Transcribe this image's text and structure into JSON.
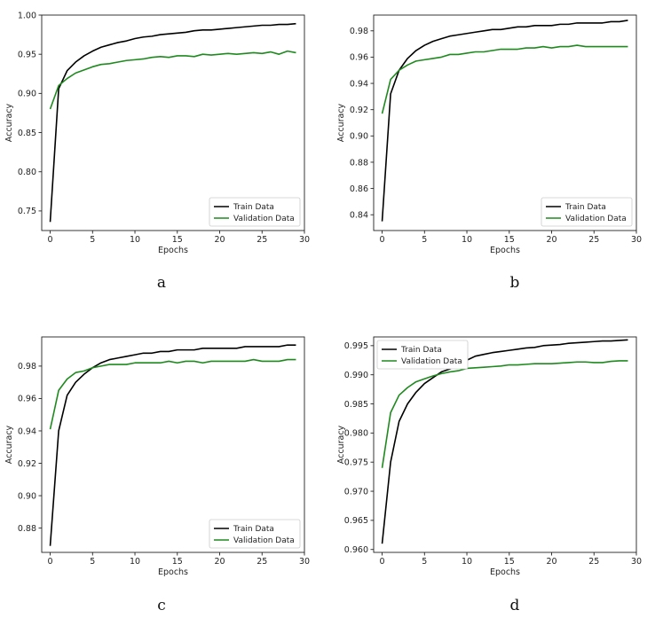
{
  "colors": {
    "train": "#000000",
    "validation": "#1e8a1e"
  },
  "chart_data": [
    {
      "type": "line",
      "panel_label": "a",
      "xlabel": "Epochs",
      "ylabel": "Accuracy",
      "xlim": [
        -1,
        30
      ],
      "ylim": [
        0.725,
        1.0
      ],
      "xticks": [
        0,
        5,
        10,
        15,
        20,
        25,
        30
      ],
      "yticks": [
        0.75,
        0.8,
        0.85,
        0.9,
        0.95,
        1.0
      ],
      "ytick_labels": [
        "0.75",
        "0.80",
        "0.85",
        "0.90",
        "0.95",
        "1.00"
      ],
      "legend_position": "lower-right",
      "x": [
        0,
        1,
        2,
        3,
        4,
        5,
        6,
        7,
        8,
        9,
        10,
        11,
        12,
        13,
        14,
        15,
        16,
        17,
        18,
        19,
        20,
        21,
        22,
        23,
        24,
        25,
        26,
        27,
        28,
        29
      ],
      "series": [
        {
          "name": "Train Data",
          "color": "train",
          "values": [
            0.736,
            0.906,
            0.929,
            0.94,
            0.948,
            0.954,
            0.959,
            0.962,
            0.965,
            0.967,
            0.97,
            0.972,
            0.973,
            0.975,
            0.976,
            0.977,
            0.978,
            0.98,
            0.981,
            0.981,
            0.982,
            0.983,
            0.984,
            0.985,
            0.986,
            0.987,
            0.987,
            0.988,
            0.988,
            0.989
          ]
        },
        {
          "name": "Validation Data",
          "color": "validation",
          "values": [
            0.88,
            0.91,
            0.919,
            0.926,
            0.93,
            0.934,
            0.937,
            0.938,
            0.94,
            0.942,
            0.943,
            0.944,
            0.946,
            0.947,
            0.946,
            0.948,
            0.948,
            0.947,
            0.95,
            0.949,
            0.95,
            0.951,
            0.95,
            0.951,
            0.952,
            0.951,
            0.953,
            0.95,
            0.954,
            0.952
          ]
        }
      ]
    },
    {
      "type": "line",
      "panel_label": "b",
      "xlabel": "Epochs",
      "ylabel": "Accuracy",
      "xlim": [
        -1,
        30
      ],
      "ylim": [
        0.828,
        0.992
      ],
      "xticks": [
        0,
        5,
        10,
        15,
        20,
        25,
        30
      ],
      "yticks": [
        0.84,
        0.86,
        0.88,
        0.9,
        0.92,
        0.94,
        0.96,
        0.98
      ],
      "ytick_labels": [
        "0.84",
        "0.86",
        "0.88",
        "0.90",
        "0.92",
        "0.94",
        "0.96",
        "0.98"
      ],
      "legend_position": "lower-right",
      "x": [
        0,
        1,
        2,
        3,
        4,
        5,
        6,
        7,
        8,
        9,
        10,
        11,
        12,
        13,
        14,
        15,
        16,
        17,
        18,
        19,
        20,
        21,
        22,
        23,
        24,
        25,
        26,
        27,
        28,
        29
      ],
      "series": [
        {
          "name": "Train Data",
          "color": "train",
          "values": [
            0.835,
            0.932,
            0.95,
            0.959,
            0.965,
            0.969,
            0.972,
            0.974,
            0.976,
            0.977,
            0.978,
            0.979,
            0.98,
            0.981,
            0.981,
            0.982,
            0.983,
            0.983,
            0.984,
            0.984,
            0.984,
            0.985,
            0.985,
            0.986,
            0.986,
            0.986,
            0.986,
            0.987,
            0.987,
            0.988
          ]
        },
        {
          "name": "Validation Data",
          "color": "validation",
          "values": [
            0.917,
            0.943,
            0.95,
            0.954,
            0.957,
            0.958,
            0.959,
            0.96,
            0.962,
            0.962,
            0.963,
            0.964,
            0.964,
            0.965,
            0.966,
            0.966,
            0.966,
            0.967,
            0.967,
            0.968,
            0.967,
            0.968,
            0.968,
            0.969,
            0.968,
            0.968,
            0.968,
            0.968,
            0.968,
            0.968
          ]
        }
      ]
    },
    {
      "type": "line",
      "panel_label": "c",
      "xlabel": "Epochs",
      "ylabel": "Accuracy",
      "xlim": [
        -1,
        30
      ],
      "ylim": [
        0.865,
        0.998
      ],
      "xticks": [
        0,
        5,
        10,
        15,
        20,
        25,
        30
      ],
      "yticks": [
        0.88,
        0.9,
        0.92,
        0.94,
        0.96,
        0.98
      ],
      "ytick_labels": [
        "0.88",
        "0.90",
        "0.92",
        "0.94",
        "0.96",
        "0.98"
      ],
      "legend_position": "lower-right",
      "x": [
        0,
        1,
        2,
        3,
        4,
        5,
        6,
        7,
        8,
        9,
        10,
        11,
        12,
        13,
        14,
        15,
        16,
        17,
        18,
        19,
        20,
        21,
        22,
        23,
        24,
        25,
        26,
        27,
        28,
        29
      ],
      "series": [
        {
          "name": "Train Data",
          "color": "train",
          "values": [
            0.869,
            0.94,
            0.962,
            0.97,
            0.975,
            0.979,
            0.982,
            0.984,
            0.985,
            0.986,
            0.987,
            0.988,
            0.988,
            0.989,
            0.989,
            0.99,
            0.99,
            0.99,
            0.991,
            0.991,
            0.991,
            0.991,
            0.991,
            0.992,
            0.992,
            0.992,
            0.992,
            0.992,
            0.993,
            0.993
          ]
        },
        {
          "name": "Validation Data",
          "color": "validation",
          "values": [
            0.941,
            0.965,
            0.972,
            0.976,
            0.977,
            0.979,
            0.98,
            0.981,
            0.981,
            0.981,
            0.982,
            0.982,
            0.982,
            0.982,
            0.983,
            0.982,
            0.983,
            0.983,
            0.982,
            0.983,
            0.983,
            0.983,
            0.983,
            0.983,
            0.984,
            0.983,
            0.983,
            0.983,
            0.984,
            0.984
          ]
        }
      ]
    },
    {
      "type": "line",
      "panel_label": "d",
      "xlabel": "Epochs",
      "ylabel": "Accuracy",
      "xlim": [
        -1,
        30
      ],
      "ylim": [
        0.9595,
        0.9965
      ],
      "xticks": [
        0,
        5,
        10,
        15,
        20,
        25,
        30
      ],
      "yticks": [
        0.96,
        0.965,
        0.97,
        0.975,
        0.98,
        0.985,
        0.99,
        0.995
      ],
      "ytick_labels": [
        "0.960",
        "0.965",
        "0.970",
        "0.975",
        "0.980",
        "0.985",
        "0.990",
        "0.995"
      ],
      "legend_position": "top-left",
      "x": [
        0,
        1,
        2,
        3,
        4,
        5,
        6,
        7,
        8,
        9,
        10,
        11,
        12,
        13,
        14,
        15,
        16,
        17,
        18,
        19,
        20,
        21,
        22,
        23,
        24,
        25,
        26,
        27,
        28,
        29
      ],
      "series": [
        {
          "name": "Train Data",
          "color": "train",
          "values": [
            0.961,
            0.975,
            0.982,
            0.985,
            0.987,
            0.9885,
            0.9895,
            0.9905,
            0.991,
            0.9918,
            0.9925,
            0.9932,
            0.9935,
            0.9938,
            0.994,
            0.9942,
            0.9944,
            0.9946,
            0.9947,
            0.995,
            0.9951,
            0.9952,
            0.9954,
            0.9955,
            0.9956,
            0.9957,
            0.9958,
            0.9958,
            0.9959,
            0.996
          ]
        },
        {
          "name": "Validation Data",
          "color": "validation",
          "values": [
            0.974,
            0.9835,
            0.9865,
            0.9878,
            0.9888,
            0.9893,
            0.9898,
            0.9902,
            0.9905,
            0.9907,
            0.9911,
            0.9912,
            0.9913,
            0.9914,
            0.9915,
            0.9917,
            0.9917,
            0.9918,
            0.9919,
            0.9919,
            0.9919,
            0.992,
            0.9921,
            0.9922,
            0.9922,
            0.9921,
            0.9921,
            0.9923,
            0.9924,
            0.9924
          ]
        }
      ]
    }
  ]
}
